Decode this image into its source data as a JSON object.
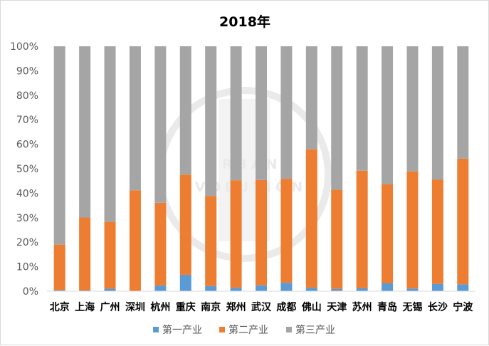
{
  "chart_data": {
    "type": "bar",
    "stacked": true,
    "percent_stacked": true,
    "title": "2018年",
    "categories": [
      "北京",
      "上海",
      "广州",
      "深圳",
      "杭州",
      "重庆",
      "南京",
      "郑州",
      "武汉",
      "成都",
      "佛山",
      "天津",
      "苏州",
      "青岛",
      "无锡",
      "长沙",
      "宁波"
    ],
    "series": [
      {
        "name": "第一产业",
        "color": "#5b9bd5",
        "values": [
          0.4,
          0.3,
          1.0,
          0.1,
          2.3,
          6.7,
          2.1,
          1.4,
          2.4,
          3.4,
          1.4,
          0.9,
          1.2,
          3.2,
          1.1,
          3.0,
          2.8
        ]
      },
      {
        "name": "第二产业",
        "color": "#ed7d31",
        "values": [
          18.6,
          29.8,
          27.3,
          41.1,
          33.8,
          40.9,
          36.8,
          43.9,
          43.0,
          42.5,
          56.5,
          40.5,
          48.0,
          40.4,
          47.8,
          42.5,
          51.3
        ]
      },
      {
        "name": "第三产业",
        "color": "#a5a5a5",
        "values": [
          81.0,
          69.9,
          71.7,
          58.8,
          63.9,
          52.4,
          61.1,
          54.7,
          54.6,
          54.1,
          42.1,
          58.6,
          50.8,
          56.4,
          51.1,
          54.5,
          45.9
        ]
      }
    ],
    "y_ticks": [
      "0%",
      "10%",
      "20%",
      "30%",
      "40%",
      "50%",
      "60%",
      "70%",
      "80%",
      "90%",
      "100%"
    ],
    "ylim": [
      0,
      100
    ],
    "grid": false,
    "legend_position": "bottom"
  },
  "watermark": "URBAN EVOLUTION"
}
